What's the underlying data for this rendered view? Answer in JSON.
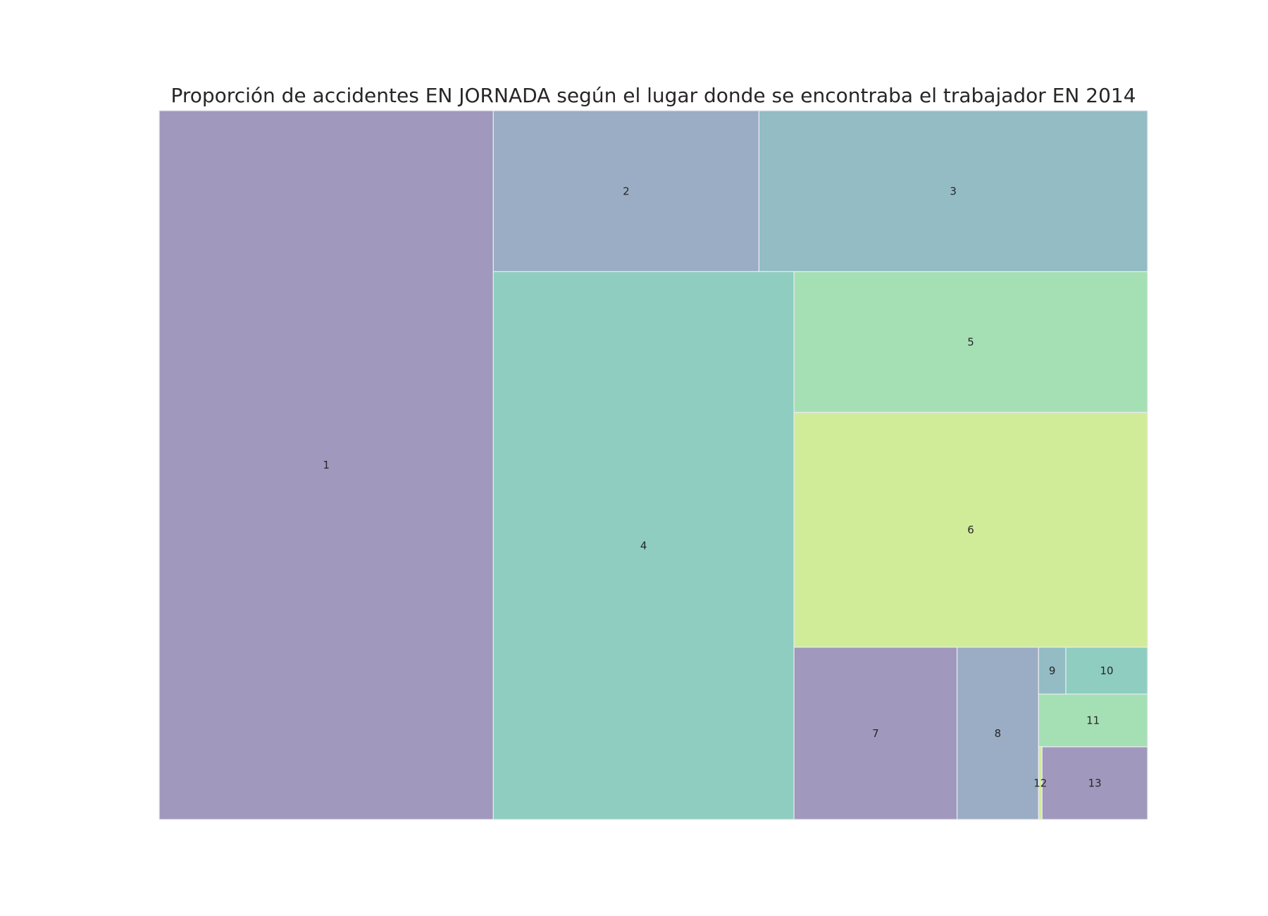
{
  "chart_data": {
    "type": "treemap",
    "title": "Proporción de accidentes EN JORNADA según el lugar donde se encontraba el trabajador EN 2014",
    "xlabel": "",
    "ylabel": "",
    "grid": false,
    "legend": "none",
    "labels": [
      "1",
      "2",
      "3",
      "4",
      "5",
      "6",
      "7",
      "8",
      "9",
      "10",
      "11",
      "12",
      "13"
    ],
    "values": [
      37.1,
      6.7,
      9.8,
      25.8,
      7.8,
      13.0,
      4.4,
      2.2,
      0.2,
      0.6,
      0.9,
      0.04,
      1.2
    ],
    "colors": [
      "#a198bd",
      "#9aadc4",
      "#93bcc4",
      "#8fcdc1",
      "#a5e0b5",
      "#d1ec99",
      "#a198bd",
      "#9aadc4",
      "#93bcc4",
      "#8fcdc1",
      "#a5e0b5",
      "#d1ec99",
      "#a198bd"
    ]
  }
}
